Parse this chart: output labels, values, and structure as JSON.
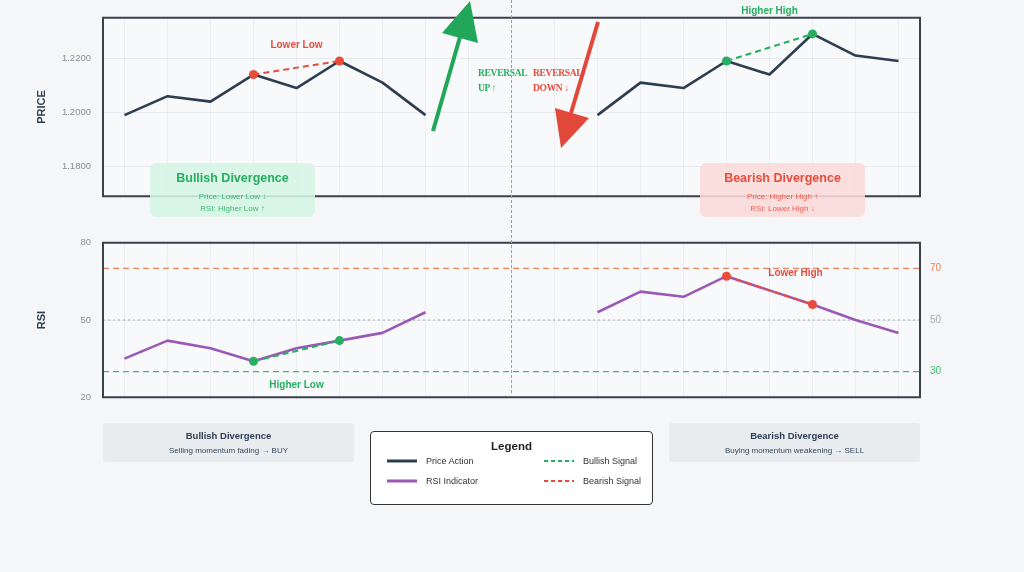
{
  "chart_data": [
    {
      "type": "line",
      "ylabel": "PRICE",
      "categories": [
        null,
        null,
        null,
        null,
        null,
        null,
        null,
        null,
        null,
        null,
        null,
        null,
        null,
        null,
        null,
        null,
        null,
        null,
        null
      ],
      "series": [
        {
          "name": "Price Action",
          "color": "#2c3e50",
          "line_style": "solid",
          "marker": "none",
          "values": [
            1.199,
            1.206,
            1.204,
            1.214,
            1.209,
            1.219,
            1.211,
            1.199,
            null,
            null,
            null,
            null,
            null,
            null,
            null,
            null,
            null,
            null,
            null
          ]
        },
        {
          "color": "#2c3e50",
          "line_style": "solid",
          "marker": "none",
          "values": [
            null,
            null,
            null,
            null,
            null,
            null,
            null,
            null,
            null,
            null,
            null,
            1.199,
            1.211,
            1.209,
            1.219,
            1.214,
            1.229,
            1.221,
            1.219
          ]
        },
        {
          "color": "#e74c3c",
          "line_style": "dashed",
          "marker": "circle",
          "values": [
            null,
            null,
            null,
            1.214,
            null,
            1.219,
            null,
            null,
            null,
            null,
            null,
            null,
            null,
            null,
            null,
            null,
            null,
            null,
            null
          ]
        },
        {
          "color": "#27ae60",
          "line_style": "dashed",
          "marker": "circle",
          "values": [
            null,
            null,
            null,
            null,
            null,
            null,
            null,
            null,
            null,
            null,
            null,
            null,
            null,
            null,
            1.219,
            null,
            1.229,
            null,
            null
          ]
        }
      ],
      "ylim": [
        1.169,
        1.235
      ],
      "yticks": [
        {
          "value": 1.18,
          "label": "1.1800"
        },
        {
          "value": 1.2,
          "label": "1.2000"
        },
        {
          "value": 1.22,
          "label": "1.2200"
        }
      ],
      "grid": true,
      "legend": "bottom",
      "tick_labels": "y",
      "annotations": [
        "Lower Low",
        "Higher High",
        "REVERSAL UP ↑",
        "REVERSAL DOWN ↓",
        "Bullish Divergence",
        "Price: Lower Low ↓",
        "RSI: Higher Low ↑",
        "Bearish Divergence",
        "Price: Higher High ↑",
        "RSI: Lower High ↓"
      ]
    },
    {
      "type": "line",
      "ylabel": "RSI",
      "categories": [
        null,
        null,
        null,
        null,
        null,
        null,
        null,
        null,
        null,
        null,
        null,
        null,
        null,
        null,
        null,
        null,
        null,
        null,
        null
      ],
      "series": [
        {
          "name": "RSI Indicator",
          "color": "#9b59b6",
          "line_style": "solid",
          "marker": "none",
          "values": [
            35,
            42,
            39,
            34,
            39,
            42,
            45,
            53,
            null,
            null,
            null,
            null,
            null,
            null,
            null,
            null,
            null,
            null,
            null
          ]
        },
        {
          "color": "#9b59b6",
          "line_style": "solid",
          "marker": "none",
          "values": [
            null,
            null,
            null,
            null,
            null,
            null,
            null,
            null,
            null,
            null,
            null,
            53,
            61,
            59,
            67,
            61.5,
            56,
            50,
            45
          ]
        },
        {
          "name": "Bullish Signal",
          "color": "#27ae60",
          "line_style": "dashed",
          "marker": "circle",
          "values": [
            null,
            null,
            null,
            34,
            null,
            42,
            null,
            null,
            null,
            null,
            null,
            null,
            null,
            null,
            null,
            null,
            null,
            null,
            null
          ]
        },
        {
          "name": "Bearish Signal",
          "color": "#e74c3c",
          "line_style": "dashed",
          "marker": "circle",
          "values": [
            null,
            null,
            null,
            null,
            null,
            null,
            null,
            null,
            null,
            null,
            null,
            null,
            null,
            null,
            67,
            null,
            56,
            null,
            null
          ]
        }
      ],
      "ylim": [
        20,
        80
      ],
      "yticks": [
        20,
        50,
        80
      ],
      "grid": true,
      "legend": "bottom",
      "legend_title": "Legend",
      "tick_labels": "y",
      "ref_lines": [
        {
          "axis": "y",
          "value": 70,
          "label": "70",
          "color": "#e8845e",
          "line_style": "dashed"
        },
        {
          "axis": "y",
          "value": 50,
          "label": "50",
          "color": "#a8adb2",
          "line_style": "dotted"
        },
        {
          "axis": "y",
          "value": 30,
          "label": "30",
          "color": "#3dbb6e",
          "line_style": "dashed"
        }
      ],
      "annotations": [
        "Higher Low",
        "Lower High",
        "Bullish Divergence",
        "Selling momentum fading → BUY",
        "Bearish Divergence",
        "Buying momentum weakening → SELL"
      ]
    }
  ]
}
